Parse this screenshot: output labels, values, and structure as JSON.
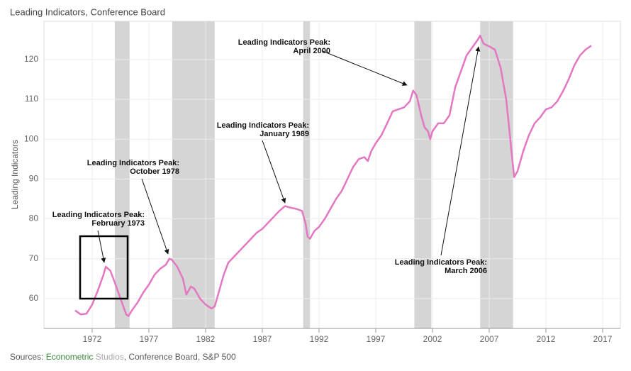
{
  "chart_data": {
    "type": "line",
    "title": "Leading Indicators, Conference Board",
    "y_label": "Leading Indicators",
    "source": [
      "Sources: ",
      "Econometric",
      " Studios",
      ", Conference Board, S&P 500"
    ],
    "xlim": [
      1967.75,
      2018.56
    ],
    "ylim": [
      52.5,
      129.6
    ],
    "xticks": [
      1972,
      1977,
      1982,
      1987,
      1992,
      1997,
      2002,
      2007,
      2012,
      2017
    ],
    "yticks": [
      60,
      70,
      80,
      90,
      100,
      110,
      120
    ],
    "grid": true,
    "shaded_ranges": [
      [
        1974.0,
        1975.3
      ],
      [
        1979.06,
        1982.8
      ],
      [
        1990.6,
        1991.2
      ],
      [
        2000.4,
        2001.9
      ],
      [
        2006.2,
        2009.1
      ]
    ],
    "series": [
      {
        "name": "Leading Indicators",
        "color": "#e377c2",
        "x": [
          1970.5,
          1971,
          1971.5,
          1972,
          1972.5,
          1973,
          1973.2,
          1973.6,
          1974,
          1974.5,
          1975,
          1975.2,
          1975.5,
          1976,
          1976.5,
          1977,
          1977.5,
          1978,
          1978.5,
          1978.8,
          1979,
          1979.5,
          1980,
          1980.3,
          1980.7,
          1981,
          1981.5,
          1982,
          1982.5,
          1982.8,
          1983.2,
          1983.6,
          1984,
          1984.5,
          1985,
          1985.5,
          1986,
          1986.5,
          1987,
          1987.5,
          1988,
          1988.5,
          1989,
          1989.5,
          1990,
          1990.5,
          1990.8,
          1991,
          1991.2,
          1991.6,
          1992,
          1992.5,
          1993,
          1993.5,
          1994,
          1994.5,
          1995,
          1995.5,
          1996,
          1996.3,
          1996.6,
          1997,
          1997.5,
          1998,
          1998.5,
          1999,
          1999.5,
          2000,
          2000.3,
          2000.6,
          2001,
          2001.3,
          2001.6,
          2001.8,
          2002,
          2002.5,
          2003,
          2003.5,
          2004,
          2004.5,
          2005,
          2005.5,
          2006,
          2006.2,
          2006.5,
          2007,
          2007.5,
          2008,
          2008.5,
          2009,
          2009.2,
          2009.5,
          2010,
          2010.5,
          2011,
          2011.5,
          2012,
          2012.5,
          2013,
          2013.5,
          2014,
          2014.5,
          2015,
          2015.5,
          2016
        ],
        "values": [
          57,
          56,
          56.2,
          58.5,
          62,
          66,
          68,
          67,
          64,
          60,
          56,
          55.6,
          57,
          59,
          61.5,
          63.5,
          66,
          67.5,
          68.5,
          70,
          69.8,
          68,
          65,
          61,
          63,
          62.5,
          60,
          58.5,
          57.5,
          58,
          62,
          66,
          69,
          70.5,
          72,
          73.5,
          75,
          76.5,
          77.5,
          79,
          80.5,
          82,
          83.2,
          82.8,
          82.5,
          82,
          79,
          75.5,
          75,
          77,
          78,
          80,
          82.5,
          85,
          87,
          90,
          93,
          95,
          95.5,
          94.5,
          97,
          99,
          101,
          104,
          107,
          107.5,
          108,
          109.5,
          112.2,
          111,
          106,
          103,
          102,
          100,
          102,
          104,
          104,
          106,
          113,
          117,
          121,
          123,
          125,
          126,
          124,
          123.3,
          122.5,
          118,
          110,
          96,
          90.5,
          92,
          97,
          101,
          104,
          105.5,
          107.5,
          108,
          109.5,
          112,
          115,
          118.5,
          121,
          122.5,
          123.5
        ]
      }
    ],
    "annotations": [
      {
        "lines": [
          "Leading Indicators Peak:",
          "February 1973"
        ]
      },
      {
        "lines": [
          "Leading Indicators Peak:",
          "October 1978"
        ]
      },
      {
        "lines": [
          "Leading Indicators Peak:",
          "January 1989"
        ]
      },
      {
        "lines": [
          "Leading Indicators Peak:",
          "April 2000"
        ]
      },
      {
        "lines": [
          "Leading Indicators Peak:",
          "March 2006"
        ]
      }
    ]
  }
}
